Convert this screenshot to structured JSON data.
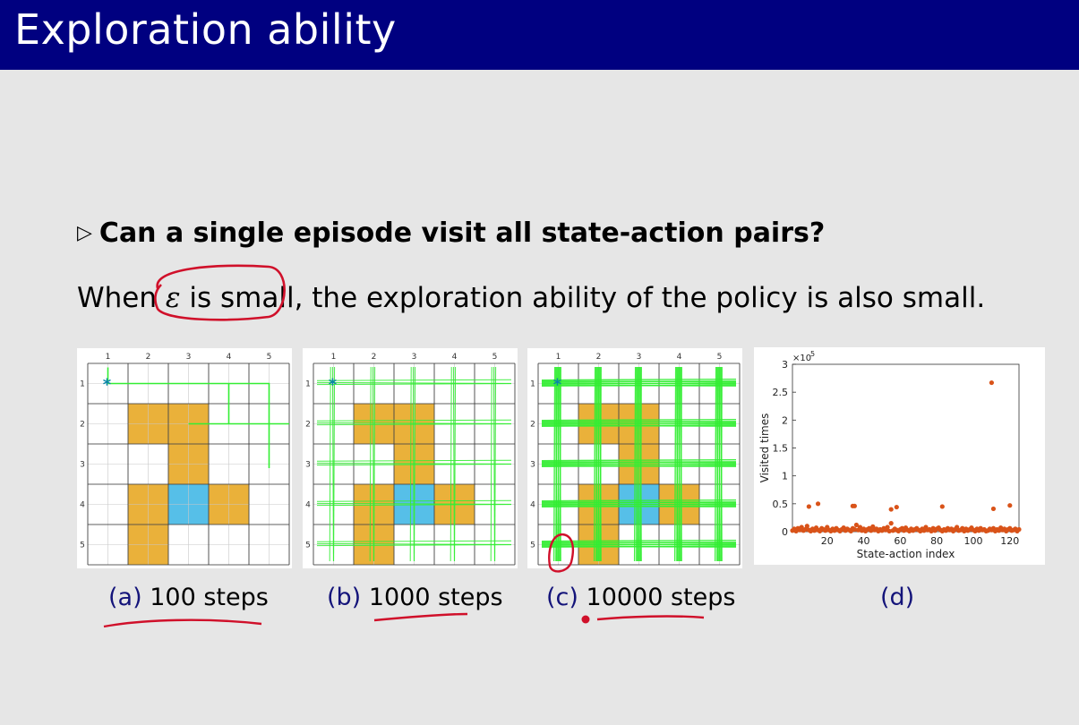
{
  "slide": {
    "title": "Exploration ability",
    "question": "Can a single episode visit all state-action pairs?",
    "bullet_icon": "triangle-right-icon",
    "sentence": {
      "prefix": "When ",
      "epsilon": "ε",
      "highlight": " is small",
      "rest": ", the exploration ability of the policy is also small."
    }
  },
  "grid": {
    "col_labels": [
      "1",
      "2",
      "3",
      "4",
      "5"
    ],
    "row_labels": [
      "1",
      "2",
      "3",
      "4",
      "5"
    ],
    "forbidden_cells": [
      [
        2,
        2
      ],
      [
        2,
        3
      ],
      [
        3,
        3
      ],
      [
        4,
        2
      ],
      [
        4,
        4
      ],
      [
        5,
        2
      ]
    ],
    "target_cell": [
      4,
      3
    ],
    "colors": {
      "forbidden": "#eab13a",
      "target": "#56bfe8",
      "trajectory": "#33ee33",
      "start": "#0b86a8"
    }
  },
  "captions": [
    {
      "label": "(a)",
      "text": "100 steps"
    },
    {
      "label": "(b)",
      "text": "1000 steps"
    },
    {
      "label": "(c)",
      "text": "10000 steps"
    },
    {
      "label": "(d)",
      "text": ""
    }
  ],
  "chart_data": {
    "type": "scatter",
    "xlabel": "State-action index",
    "ylabel": "Visited times",
    "exponent_label": "×10",
    "exponent_power": "5",
    "xlim": [
      1,
      125
    ],
    "ylim": [
      0,
      3
    ],
    "xticks": [
      "20",
      "40",
      "60",
      "80",
      "100",
      "120"
    ],
    "yticks": [
      "0",
      "0.5",
      "1",
      "1.5",
      "2",
      "2.5",
      "3"
    ],
    "color": "#d95319",
    "series": [
      {
        "x": [
          1,
          2,
          3,
          4,
          5,
          6,
          7,
          8,
          9,
          10,
          11,
          12,
          13,
          14,
          15,
          16,
          17,
          18,
          19,
          20,
          21,
          22,
          23,
          24,
          25,
          26,
          27,
          28,
          29,
          30,
          31,
          32,
          33,
          34,
          35,
          36,
          37,
          38,
          39,
          40,
          41,
          42,
          43,
          44,
          45,
          46,
          47,
          48,
          49,
          50,
          51,
          52,
          53,
          54,
          55,
          56,
          57,
          58,
          59,
          60,
          61,
          62,
          63,
          64,
          65,
          66,
          67,
          68,
          69,
          70,
          71,
          72,
          73,
          74,
          75,
          76,
          77,
          78,
          79,
          80,
          81,
          82,
          83,
          84,
          85,
          86,
          87,
          88,
          89,
          90,
          91,
          92,
          93,
          94,
          95,
          96,
          97,
          98,
          99,
          100,
          101,
          102,
          103,
          104,
          105,
          106,
          107,
          108,
          109,
          110,
          111,
          112,
          113,
          114,
          115,
          116,
          117,
          118,
          119,
          120,
          121,
          122,
          123,
          124,
          125,
          10,
          15,
          34,
          35,
          55,
          58,
          83,
          110,
          111,
          112,
          120
        ],
        "y": [
          0.02,
          0.05,
          0.01,
          0.06,
          0.03,
          0.08,
          0.02,
          0.04,
          0.1,
          0.03,
          0.01,
          0.05,
          0.02,
          0.07,
          0.03,
          0.01,
          0.06,
          0.04,
          0.02,
          0.08,
          0.03,
          0.01,
          0.05,
          0.02,
          0.06,
          0.03,
          0.01,
          0.04,
          0.07,
          0.02,
          0.05,
          0.03,
          0.01,
          0.06,
          0.04,
          0.12,
          0.03,
          0.08,
          0.02,
          0.05,
          0.01,
          0.04,
          0.06,
          0.02,
          0.09,
          0.03,
          0.05,
          0.01,
          0.04,
          0.02,
          0.06,
          0.03,
          0.08,
          0.01,
          0.15,
          0.02,
          0.05,
          0.03,
          0.01,
          0.04,
          0.06,
          0.02,
          0.07,
          0.03,
          0.01,
          0.05,
          0.02,
          0.04,
          0.06,
          0.03,
          0.01,
          0.05,
          0.02,
          0.08,
          0.03,
          0.04,
          0.01,
          0.06,
          0.02,
          0.05,
          0.07,
          0.03,
          0.01,
          0.04,
          0.02,
          0.06,
          0.03,
          0.05,
          0.01,
          0.04,
          0.08,
          0.02,
          0.03,
          0.06,
          0.01,
          0.05,
          0.02,
          0.04,
          0.07,
          0.03,
          0.01,
          0.05,
          0.02,
          0.06,
          0.03,
          0.04,
          0.01,
          0.02,
          0.05,
          0.03,
          0.06,
          0.01,
          0.04,
          0.02,
          0.07,
          0.03,
          0.05,
          0.01,
          0.04,
          0.06,
          0.02,
          0.03,
          0.05,
          0.01,
          0.04,
          0.45,
          0.5,
          0.46,
          0.46,
          0.4,
          0.44,
          0.45,
          2.67,
          0.41,
          0.02,
          0.47
        ]
      }
    ]
  }
}
